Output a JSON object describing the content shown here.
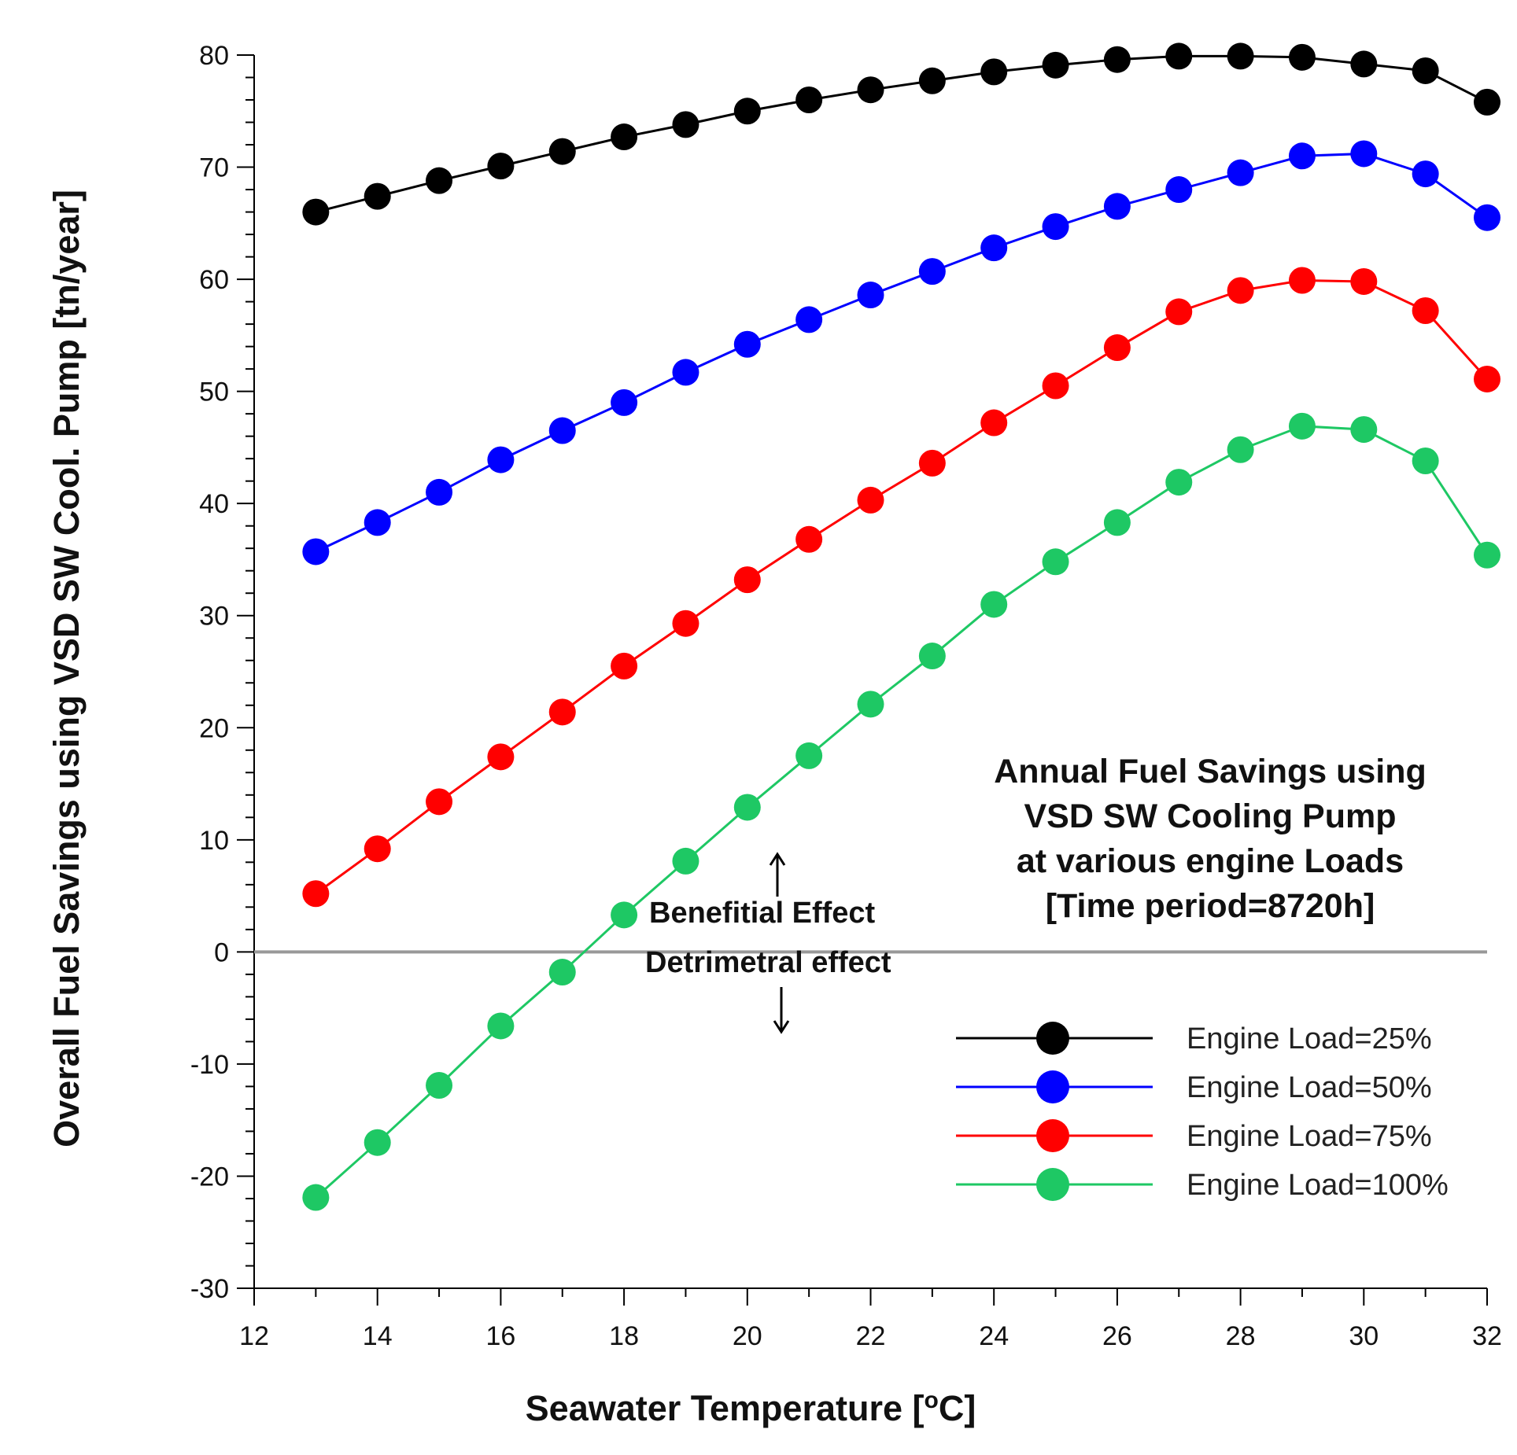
{
  "chart_data": {
    "type": "line",
    "title_lines": [
      "Annual Fuel Savings using",
      "VSD SW Cooling Pump",
      "at various engine Loads",
      "[Time period=8720h]"
    ],
    "xlabel": "Seawater Temperature [",
    "xlabel_sup": "o",
    "xlabel_end": "C]",
    "ylabel": "Overall Fuel Savings using VSD SW Cool. Pump [tn/year]",
    "xlim": [
      12,
      32
    ],
    "ylim": [
      -30,
      80
    ],
    "x_ticks": [
      "12",
      "14",
      "16",
      "18",
      "20",
      "22",
      "24",
      "26",
      "28",
      "30",
      "32"
    ],
    "y_ticks": [
      "80",
      "70",
      "60",
      "50",
      "40",
      "30",
      "20",
      "10",
      "0",
      "-10",
      "-20",
      "-30"
    ],
    "x": [
      13,
      14,
      15,
      16,
      17,
      18,
      19,
      20,
      21,
      22,
      23,
      24,
      25,
      26,
      27,
      28,
      29,
      30,
      31,
      32
    ],
    "series": [
      {
        "name": "Engine Load=25%",
        "color": "#000000",
        "values": [
          66.0,
          67.4,
          68.8,
          70.1,
          71.4,
          72.7,
          73.8,
          75.0,
          76.0,
          76.9,
          77.7,
          78.5,
          79.1,
          79.6,
          79.9,
          79.9,
          79.8,
          79.2,
          78.6,
          75.8
        ]
      },
      {
        "name": "Engine Load=50%",
        "color": "#0000ff",
        "values": [
          35.7,
          38.3,
          41.0,
          43.9,
          46.5,
          49.0,
          51.7,
          54.2,
          56.4,
          58.6,
          60.7,
          62.8,
          64.7,
          66.5,
          68.0,
          69.5,
          71.0,
          71.2,
          69.4,
          65.5
        ]
      },
      {
        "name": "Engine Load=75%",
        "color": "#ff0000",
        "values": [
          5.2,
          9.2,
          13.4,
          17.4,
          21.4,
          25.5,
          29.3,
          33.2,
          36.8,
          40.3,
          43.6,
          47.2,
          50.5,
          53.9,
          57.1,
          59.0,
          59.9,
          59.8,
          57.2,
          51.1
        ]
      },
      {
        "name": "Engine Load=100%",
        "color": "#1ec864",
        "values": [
          -21.9,
          -17.0,
          -11.9,
          -6.6,
          -1.8,
          3.3,
          8.1,
          12.9,
          17.5,
          22.1,
          26.4,
          31.0,
          34.8,
          38.3,
          41.9,
          44.8,
          46.9,
          46.6,
          43.8,
          35.4
        ]
      }
    ],
    "zero_line_color": "#999999",
    "annotations": {
      "beneficial": "Benefitial Effect",
      "detrimental": "Detrimetral effect"
    },
    "legend_position": "lower-right"
  }
}
